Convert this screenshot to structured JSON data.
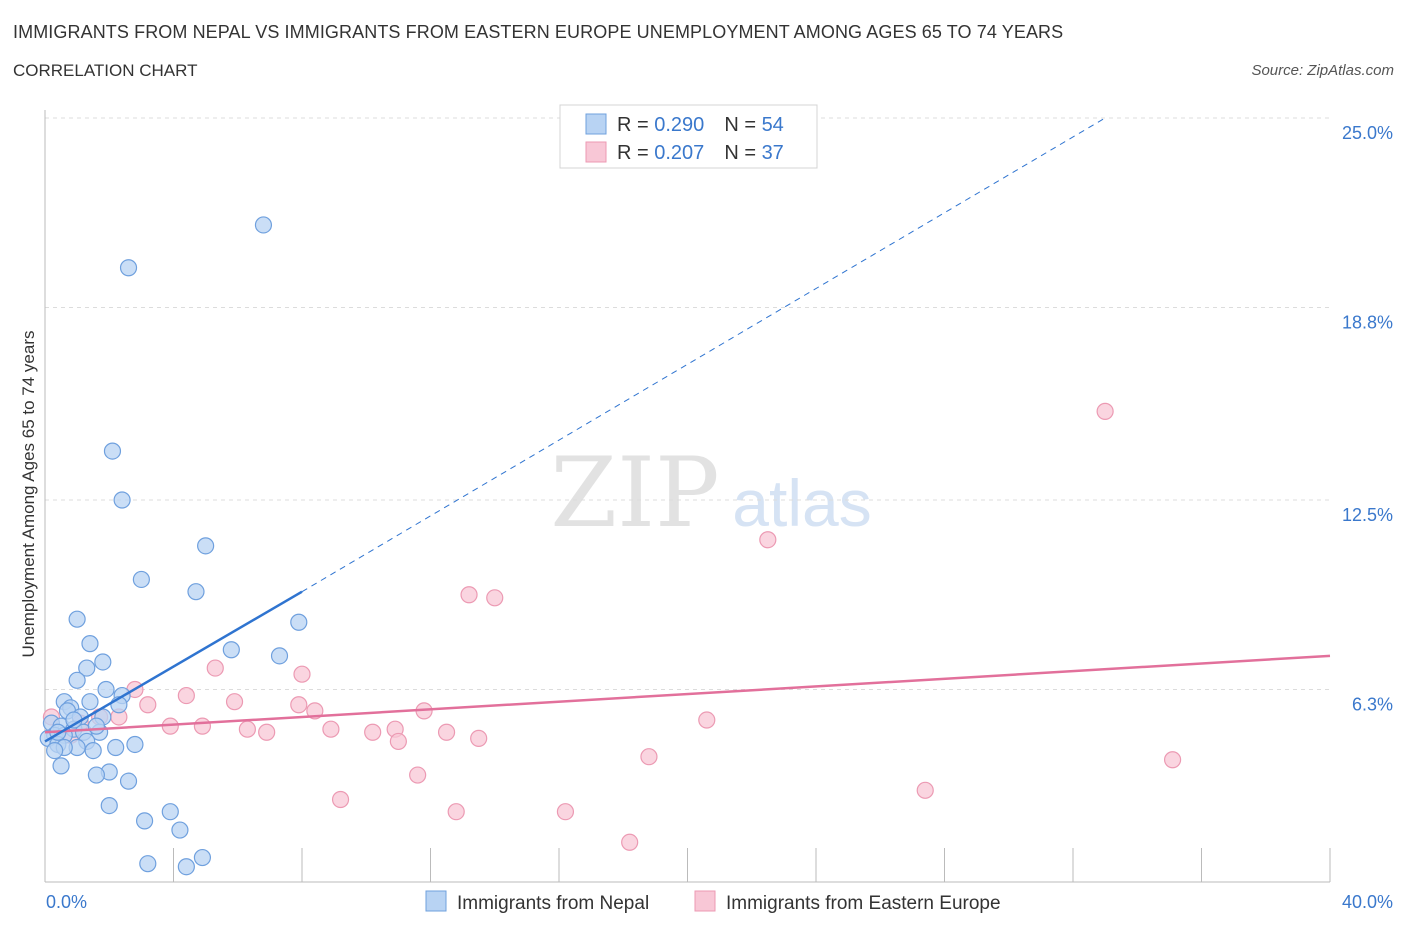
{
  "title": "IMMIGRANTS FROM NEPAL VS IMMIGRANTS FROM EASTERN EUROPE UNEMPLOYMENT AMONG AGES 65 TO 74 YEARS",
  "subtitle": "CORRELATION CHART",
  "source": "Source: ZipAtlas.com",
  "watermark": {
    "zip": "ZIP",
    "atlas": "atlas"
  },
  "colors": {
    "nepal_fill": "#b8d3f3",
    "nepal_stroke": "#6fa0de",
    "nepal_line": "#2f74d0",
    "ee_fill": "#f8c7d6",
    "ee_stroke": "#ec9ab3",
    "ee_line": "#e2709b",
    "value_blue": "#3a78cc"
  },
  "legend_top": [
    {
      "r_label": "R = ",
      "r_value": "0.290",
      "n_label": "N = ",
      "n_value": "54"
    },
    {
      "r_label": "R = ",
      "r_value": "0.207",
      "n_label": "N = ",
      "n_value": "37"
    }
  ],
  "chart_data": {
    "type": "scatter",
    "title": "IMMIGRANTS FROM NEPAL VS IMMIGRANTS FROM EASTERN EUROPE UNEMPLOYMENT AMONG AGES 65 TO 74 YEARS",
    "ylabel": "Unemployment Among Ages 65 to 74 years",
    "xlabel": "",
    "xlim": [
      0,
      40
    ],
    "ylim": [
      0,
      25
    ],
    "x_tick_labels": [
      "0.0%",
      "40.0%"
    ],
    "y_ticks": [
      6.3,
      12.5,
      18.8,
      25.0
    ],
    "y_tick_labels": [
      "6.3%",
      "12.5%",
      "18.8%",
      "25.0%"
    ],
    "grid": true,
    "legend_position": "bottom-center",
    "series": [
      {
        "name": "Immigrants from Nepal",
        "r": 0.29,
        "n": 54,
        "trend": {
          "x0": 0.0,
          "y0": 4.6,
          "x1": 8.0,
          "y1": 9.5,
          "dashed_to_x": 33.0,
          "dashed_to_y": 25.0
        },
        "points": [
          [
            6.8,
            21.5
          ],
          [
            2.6,
            20.1
          ],
          [
            2.1,
            14.1
          ],
          [
            2.4,
            12.5
          ],
          [
            5.0,
            11.0
          ],
          [
            3.0,
            9.9
          ],
          [
            4.7,
            9.5
          ],
          [
            1.0,
            8.6
          ],
          [
            7.9,
            8.5
          ],
          [
            1.4,
            7.8
          ],
          [
            5.8,
            7.6
          ],
          [
            7.3,
            7.4
          ],
          [
            1.8,
            7.2
          ],
          [
            1.3,
            7.0
          ],
          [
            1.0,
            6.6
          ],
          [
            1.9,
            6.3
          ],
          [
            2.4,
            6.1
          ],
          [
            0.6,
            5.9
          ],
          [
            1.4,
            5.9
          ],
          [
            0.8,
            5.7
          ],
          [
            2.3,
            5.8
          ],
          [
            0.7,
            5.6
          ],
          [
            1.1,
            5.4
          ],
          [
            1.8,
            5.4
          ],
          [
            0.2,
            5.2
          ],
          [
            0.5,
            5.1
          ],
          [
            0.9,
            5.0
          ],
          [
            1.2,
            4.9
          ],
          [
            1.7,
            4.9
          ],
          [
            0.3,
            4.8
          ],
          [
            0.6,
            4.8
          ],
          [
            0.1,
            4.7
          ],
          [
            1.3,
            4.6
          ],
          [
            0.4,
            4.5
          ],
          [
            2.8,
            4.5
          ],
          [
            1.0,
            4.4
          ],
          [
            2.2,
            4.4
          ],
          [
            0.6,
            4.4
          ],
          [
            1.5,
            4.3
          ],
          [
            0.3,
            4.3
          ],
          [
            0.5,
            3.8
          ],
          [
            2.0,
            3.6
          ],
          [
            1.6,
            3.5
          ],
          [
            2.6,
            3.3
          ],
          [
            2.0,
            2.5
          ],
          [
            3.9,
            2.3
          ],
          [
            3.1,
            2.0
          ],
          [
            4.2,
            1.7
          ],
          [
            4.9,
            0.8
          ],
          [
            3.2,
            0.6
          ],
          [
            4.4,
            0.5
          ],
          [
            0.9,
            5.3
          ],
          [
            1.6,
            5.1
          ],
          [
            0.4,
            4.9
          ]
        ]
      },
      {
        "name": "Immigrants from Eastern Europe",
        "r": 0.207,
        "n": 37,
        "trend": {
          "x0": 0.0,
          "y0": 4.9,
          "x1": 40.0,
          "y1": 7.4
        },
        "points": [
          [
            33.0,
            15.4
          ],
          [
            22.5,
            11.2
          ],
          [
            13.2,
            9.4
          ],
          [
            14.0,
            9.3
          ],
          [
            5.3,
            7.0
          ],
          [
            8.0,
            6.8
          ],
          [
            2.8,
            6.3
          ],
          [
            4.4,
            6.1
          ],
          [
            5.9,
            5.9
          ],
          [
            3.2,
            5.8
          ],
          [
            7.9,
            5.8
          ],
          [
            8.4,
            5.6
          ],
          [
            11.8,
            5.6
          ],
          [
            1.7,
            5.4
          ],
          [
            2.3,
            5.4
          ],
          [
            20.6,
            5.3
          ],
          [
            0.2,
            5.4
          ],
          [
            3.9,
            5.1
          ],
          [
            4.9,
            5.1
          ],
          [
            6.3,
            5.0
          ],
          [
            8.9,
            5.0
          ],
          [
            10.2,
            4.9
          ],
          [
            10.9,
            5.0
          ],
          [
            12.5,
            4.9
          ],
          [
            6.9,
            4.9
          ],
          [
            0.8,
            4.8
          ],
          [
            13.5,
            4.7
          ],
          [
            11.0,
            4.6
          ],
          [
            18.8,
            4.1
          ],
          [
            35.1,
            4.0
          ],
          [
            11.6,
            3.5
          ],
          [
            27.4,
            3.0
          ],
          [
            9.2,
            2.7
          ],
          [
            12.8,
            2.3
          ],
          [
            16.2,
            2.3
          ],
          [
            18.2,
            1.3
          ],
          [
            1.1,
            5.2
          ]
        ]
      }
    ]
  }
}
